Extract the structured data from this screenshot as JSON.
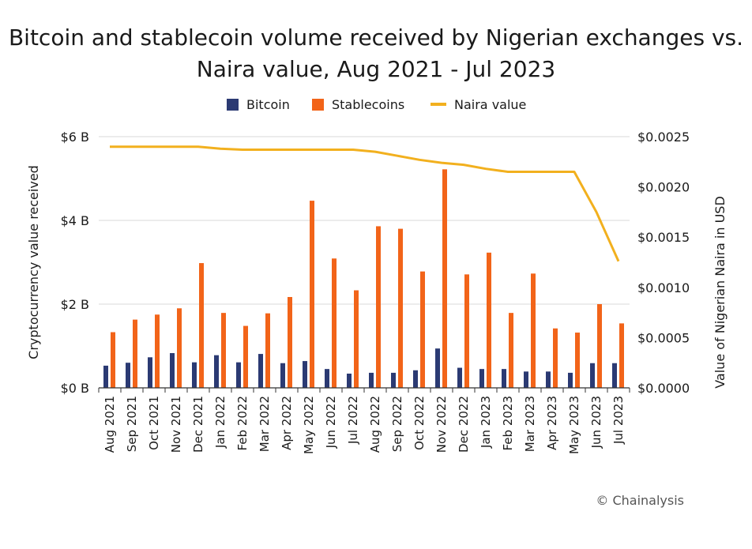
{
  "title_line1": "Bitcoin and stablecoin volume received by Nigerian exchanges vs.",
  "title_line2": "Naira value, Aug 2021 - Jul 2023",
  "credit": "© Chainalysis",
  "colors": {
    "bitcoin": "#2b3a73",
    "stablecoins": "#f26419",
    "naira": "#f2b01e",
    "grid": "#d9d9d9",
    "axis": "#333333"
  },
  "chart_data": {
    "type": "bar",
    "title": "Bitcoin and stablecoin volume received by Nigerian exchanges vs. Naira value, Aug 2021 - Jul 2023",
    "categories": [
      "Aug 2021",
      "Sep 2021",
      "Oct 2021",
      "Nov 2021",
      "Dec 2021",
      "Jan 2022",
      "Feb 2022",
      "Mar 2022",
      "Apr 2022",
      "May 2022",
      "Jun 2022",
      "Jul 2022",
      "Aug 2022",
      "Sep 2022",
      "Oct 2022",
      "Nov 2022",
      "Dec 2022",
      "Jan 2023",
      "Feb 2023",
      "Mar 2023",
      "Apr 2023",
      "May 2023",
      "Jun 2023",
      "Jul 2023"
    ],
    "series": [
      {
        "name": "Bitcoin",
        "type": "bar",
        "axis": "left",
        "values": [
          0.53,
          0.6,
          0.73,
          0.83,
          0.61,
          0.78,
          0.61,
          0.81,
          0.59,
          0.64,
          0.45,
          0.34,
          0.36,
          0.36,
          0.42,
          0.94,
          0.48,
          0.45,
          0.45,
          0.39,
          0.39,
          0.36,
          0.59,
          0.59
        ]
      },
      {
        "name": "Stablecoins",
        "type": "bar",
        "axis": "left",
        "values": [
          1.33,
          1.63,
          1.75,
          1.9,
          2.98,
          1.79,
          1.48,
          1.78,
          2.17,
          4.47,
          3.09,
          2.33,
          3.86,
          3.8,
          2.78,
          5.22,
          2.71,
          3.23,
          1.79,
          2.73,
          1.42,
          1.32,
          2.0,
          1.54
        ]
      },
      {
        "name": "Naira value",
        "type": "line",
        "axis": "right",
        "values": [
          0.0024,
          0.0024,
          0.0024,
          0.0024,
          0.0024,
          0.00238,
          0.00237,
          0.00237,
          0.00237,
          0.00237,
          0.00237,
          0.00237,
          0.00235,
          0.00231,
          0.00227,
          0.00224,
          0.00222,
          0.00218,
          0.00215,
          0.00215,
          0.00215,
          0.00215,
          0.00175,
          0.00126
        ]
      }
    ],
    "left_axis": {
      "label": "Cryptocurrency value received",
      "min": 0,
      "max": 6,
      "ticks": [
        0,
        2,
        4,
        6
      ],
      "tick_labels": [
        "$0 B",
        "$2 B",
        "$4 B",
        "$6 B"
      ]
    },
    "right_axis": {
      "label": "Value of Nigerian Naira in USD",
      "min": 0,
      "max": 0.0025,
      "ticks": [
        0,
        0.0005,
        0.001,
        0.0015,
        0.002,
        0.0025
      ],
      "tick_labels": [
        "$0.0000",
        "$0.0005",
        "$0.0010",
        "$0.0015",
        "$0.0020",
        "$0.0025"
      ]
    },
    "legend": [
      "Bitcoin",
      "Stablecoins",
      "Naira value"
    ],
    "legend_position": "top-center",
    "grid": true
  }
}
